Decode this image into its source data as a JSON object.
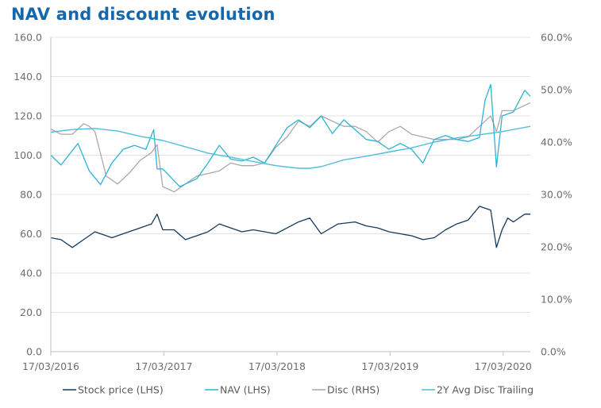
{
  "title": "NAV and discount evolution",
  "colors": {
    "stock": "#123a5e",
    "nav": "#2db3d6",
    "disc": "#a9a9a9",
    "avg": "#4fbfd9",
    "title": "#1467ac"
  },
  "chart_data": {
    "type": "line",
    "title": "NAV and discount evolution",
    "x_ticks": [
      "17/03/2016",
      "17/03/2017",
      "17/03/2018",
      "17/03/2019",
      "17/03/2020"
    ],
    "y_left": {
      "ticks": [
        "0.0",
        "20.0",
        "40.0",
        "60.0",
        "80.0",
        "100.0",
        "120.0",
        "140.0",
        "160.0"
      ],
      "min": 0,
      "max": 160
    },
    "y_right": {
      "ticks": [
        "0.0%",
        "10.0%",
        "20.0%",
        "30.0%",
        "40.0%",
        "50.0%",
        "60.0%"
      ],
      "min": 0,
      "max": 60
    },
    "grid": true,
    "legend_position": "bottom",
    "series": [
      {
        "name": "Stock price (LHS)",
        "axis": "left",
        "color": "#123a5e",
        "x": [
          2016.21,
          2016.3,
          2016.4,
          2016.5,
          2016.6,
          2016.75,
          2016.9,
          2017.0,
          2017.1,
          2017.15,
          2017.2,
          2017.3,
          2017.4,
          2017.5,
          2017.6,
          2017.7,
          2017.8,
          2017.9,
          2018.0,
          2018.1,
          2018.2,
          2018.3,
          2018.4,
          2018.5,
          2018.6,
          2018.75,
          2018.9,
          2019.0,
          2019.1,
          2019.2,
          2019.3,
          2019.4,
          2019.5,
          2019.6,
          2019.7,
          2019.8,
          2019.9,
          2020.0,
          2020.1,
          2020.15,
          2020.2,
          2020.25,
          2020.3,
          2020.4,
          2020.45
        ],
        "values": [
          58,
          57,
          53,
          57,
          61,
          58,
          61,
          63,
          65,
          70,
          62,
          62,
          57,
          59,
          61,
          65,
          63,
          61,
          62,
          61,
          60,
          63,
          66,
          68,
          60,
          65,
          66,
          64,
          63,
          61,
          60,
          59,
          57,
          58,
          62,
          65,
          67,
          74,
          72,
          53,
          62,
          68,
          66,
          70,
          70
        ]
      },
      {
        "name": "NAV (LHS)",
        "axis": "left",
        "color": "#2db3d6",
        "x": [
          2016.21,
          2016.3,
          2016.45,
          2016.55,
          2016.65,
          2016.75,
          2016.85,
          2016.95,
          2017.05,
          2017.12,
          2017.15,
          2017.2,
          2017.35,
          2017.5,
          2017.6,
          2017.7,
          2017.8,
          2017.9,
          2018.0,
          2018.1,
          2018.2,
          2018.3,
          2018.4,
          2018.5,
          2018.6,
          2018.7,
          2018.8,
          2018.9,
          2019.0,
          2019.1,
          2019.2,
          2019.3,
          2019.4,
          2019.5,
          2019.6,
          2019.7,
          2019.8,
          2019.9,
          2020.0,
          2020.05,
          2020.1,
          2020.15,
          2020.2,
          2020.3,
          2020.4,
          2020.45
        ],
        "values": [
          100,
          95,
          106,
          92,
          85,
          96,
          103,
          105,
          103,
          113,
          93,
          93,
          84,
          88,
          96,
          105,
          98,
          97,
          99,
          96,
          105,
          114,
          118,
          114,
          120,
          111,
          118,
          113,
          108,
          107,
          103,
          106,
          103,
          96,
          108,
          110,
          108,
          107,
          109,
          128,
          136,
          94,
          120,
          122,
          133,
          130
        ]
      },
      {
        "name": "Disc (RHS)",
        "axis": "right",
        "color": "#a9a9a9",
        "x": [
          2016.21,
          2016.3,
          2016.4,
          2016.5,
          2016.55,
          2016.6,
          2016.7,
          2016.8,
          2016.9,
          2017.0,
          2017.1,
          2017.15,
          2017.2,
          2017.3,
          2017.4,
          2017.5,
          2017.6,
          2017.7,
          2017.8,
          2017.9,
          2018.0,
          2018.1,
          2018.2,
          2018.3,
          2018.4,
          2018.5,
          2018.6,
          2018.7,
          2018.8,
          2018.9,
          2019.0,
          2019.1,
          2019.2,
          2019.3,
          2019.4,
          2019.5,
          2019.6,
          2019.7,
          2019.8,
          2019.9,
          2020.0,
          2020.1,
          2020.15,
          2020.2,
          2020.3,
          2020.4,
          2020.45
        ],
        "values": [
          42.5,
          41.5,
          41.5,
          43.5,
          43,
          42,
          33.5,
          32,
          34,
          36.5,
          38,
          39.5,
          31.5,
          30.5,
          32,
          33.5,
          34,
          34.5,
          36,
          35.5,
          35.5,
          36,
          39,
          41,
          44,
          43,
          45,
          44,
          43,
          43,
          42,
          40,
          42,
          43,
          41.5,
          41,
          40.5,
          40.5,
          40.5,
          41,
          43,
          45,
          42,
          46,
          46,
          47,
          47.5
        ]
      },
      {
        "name": "2Y Avg Disc Trailing",
        "axis": "right",
        "color": "#4fbfd9",
        "x": [
          2016.21,
          2016.4,
          2016.6,
          2016.8,
          2017.0,
          2017.2,
          2017.4,
          2017.6,
          2017.8,
          2018.0,
          2018.2,
          2018.4,
          2018.5,
          2018.6,
          2018.8,
          2019.0,
          2019.2,
          2019.4,
          2019.6,
          2019.8,
          2020.0,
          2020.2,
          2020.45
        ],
        "values": [
          41.9,
          42.4,
          42.6,
          42.1,
          41.1,
          40.3,
          39.1,
          37.9,
          37.1,
          36.3,
          35.5,
          35,
          35,
          35.3,
          36.6,
          37.3,
          38.1,
          38.9,
          40,
          40.8,
          41.4,
          42,
          43
        ]
      }
    ]
  }
}
